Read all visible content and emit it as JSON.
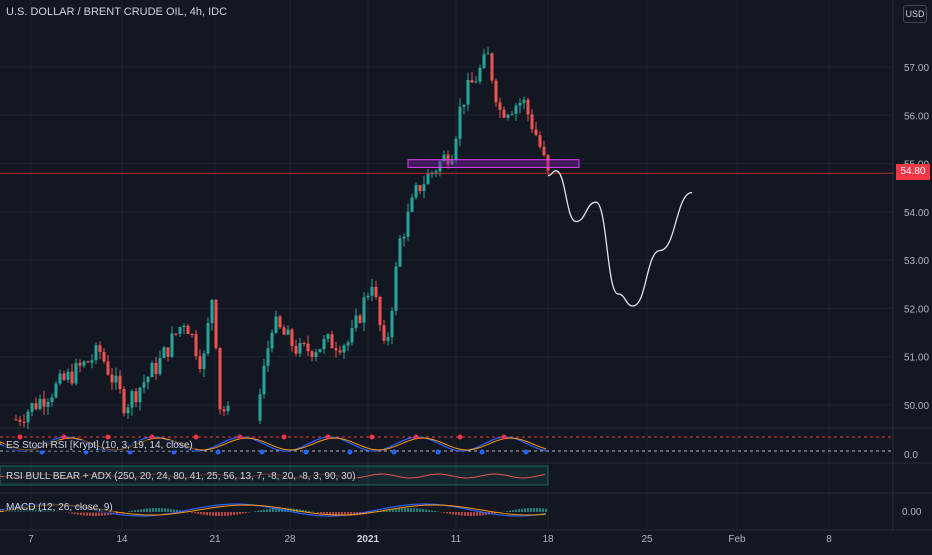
{
  "header": {
    "title": "U.S. DOLLAR / BRENT CRUDE OIL, 4h, IDC",
    "currency_badge": "USD",
    "last_price": "54.80"
  },
  "indicators": {
    "stoch_label": "ES Stoch RSI [Krypt] (10, 3, 19, 14, close)",
    "stoch_value": "0.0",
    "rsi_label": "RSI BULL BEAR + ADX (250, 20, 24, 80, 41, 25, 56, 13, 7, -8, 20, -8, 3, 90, 30)",
    "macd_label": "MACD (12, 26, close, 9)",
    "macd_value": "0.00"
  },
  "colors": {
    "background": "#131722",
    "up": "#26a69a",
    "down": "#ef5350",
    "grid": "#1e222d",
    "zone_fill": "#7b1fa2",
    "zone_border": "#e040fb",
    "price_line": "#f23645"
  },
  "chart_data": {
    "type": "candlestick",
    "interval": "4h",
    "ylim": [
      49.5,
      58.0
    ],
    "y_ticks": [
      "50.00",
      "51.00",
      "52.00",
      "53.00",
      "54.00",
      "55.00",
      "56.00",
      "57.00"
    ],
    "x_ticks": [
      "7",
      "14",
      "21",
      "28",
      "2021",
      "11",
      "18",
      "25",
      "Feb",
      "8"
    ],
    "grid": true,
    "last_price": 54.8,
    "resistance_zone": [
      54.92,
      55.08
    ],
    "ohlc_waypoints": [
      {
        "date": "7",
        "price": 49.7
      },
      {
        "date": "10",
        "price": 51.1
      },
      {
        "date": "13",
        "price": 50.0
      },
      {
        "date": "16",
        "price": 50.9
      },
      {
        "date": "18",
        "price": 51.8
      },
      {
        "date": "20",
        "price": 50.8
      },
      {
        "date": "21",
        "price": 52.4
      },
      {
        "date": "22",
        "price": 50.0
      },
      {
        "date": "24",
        "price": 49.2
      },
      {
        "date": "26",
        "price": 51.7
      },
      {
        "date": "29",
        "price": 51.1
      },
      {
        "date": "31",
        "price": 51.3
      },
      {
        "date": "1",
        "price": 51.3
      },
      {
        "date": "2021",
        "price": 52.6
      },
      {
        "date": "2021",
        "price": 51.0
      },
      {
        "date": "5",
        "price": 53.4
      },
      {
        "date": "8",
        "price": 54.5
      },
      {
        "date": "11",
        "price": 55.3
      },
      {
        "date": "12",
        "price": 56.3
      },
      {
        "date": "13",
        "price": 57.2
      },
      {
        "date": "14",
        "price": 56.1
      },
      {
        "date": "16",
        "price": 56.3
      },
      {
        "date": "17",
        "price": 55.5
      },
      {
        "date": "18",
        "price": 54.75
      }
    ],
    "projection": [
      {
        "date": "18",
        "price": 54.75
      },
      {
        "date": "19",
        "price": 54.85
      },
      {
        "date": "20",
        "price": 53.8
      },
      {
        "date": "21",
        "price": 54.2
      },
      {
        "date": "23",
        "price": 52.3
      },
      {
        "date": "24",
        "price": 52.05
      },
      {
        "date": "26",
        "price": 53.2
      },
      {
        "date": "29",
        "price": 54.4
      }
    ]
  }
}
